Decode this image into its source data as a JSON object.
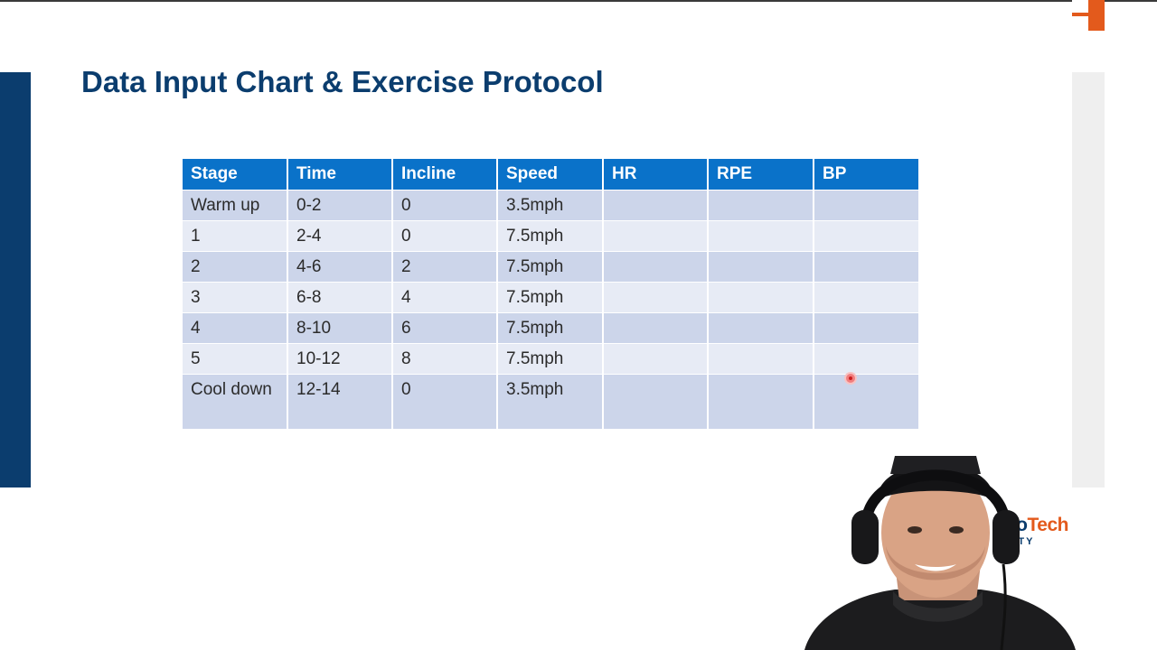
{
  "slide": {
    "title": "Data Input Chart & Exercise Protocol"
  },
  "table": {
    "headers": [
      "Stage",
      "Time",
      "Incline",
      "Speed",
      "HR",
      "RPE",
      "BP"
    ],
    "rows": [
      [
        "Warm up",
        "0-2",
        "0",
        "3.5mph",
        "",
        "",
        ""
      ],
      [
        "1",
        "2-4",
        "0",
        "7.5mph",
        "",
        "",
        ""
      ],
      [
        "2",
        "4-6",
        "2",
        "7.5mph",
        "",
        "",
        ""
      ],
      [
        "3",
        "6-8",
        "4",
        "7.5mph",
        "",
        "",
        ""
      ],
      [
        "4",
        "8-10",
        "6",
        "7.5mph",
        "",
        "",
        ""
      ],
      [
        "5",
        "10-12",
        "8",
        "7.5mph",
        "",
        "",
        ""
      ],
      [
        "Cool down",
        "12-14",
        "0",
        "3.5mph",
        "",
        "",
        ""
      ]
    ]
  },
  "brand": {
    "name_part1": "ario",
    "name_part2": "Tech",
    "sub": "SITY"
  },
  "colors": {
    "primary": "#0b3d6e",
    "header_bg": "#0a72c9",
    "row_dark": "#ccd5ea",
    "row_light": "#e7ebf5",
    "accent": "#e35a1c"
  },
  "icons": {
    "pointer": "laser-pointer-icon",
    "logo": "corner-logo-icon",
    "presenter": "webcam-presenter-icon"
  }
}
